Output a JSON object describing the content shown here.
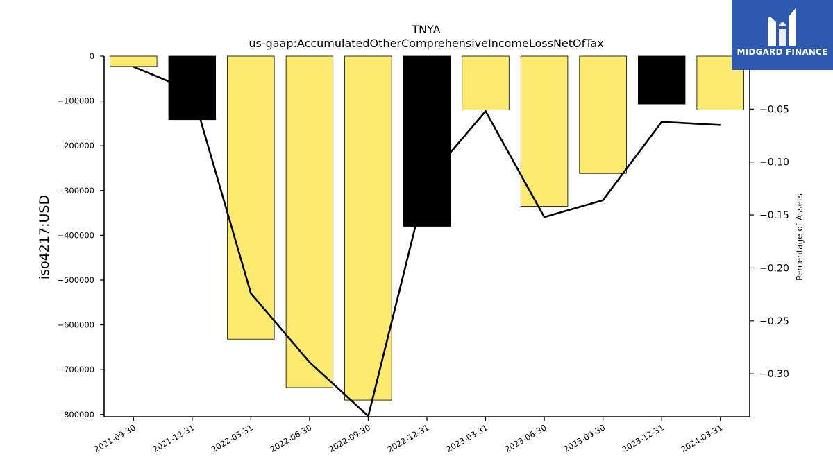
{
  "chart_data": {
    "type": "bar",
    "title": "TNYA",
    "subtitle": "us-gaap:AccumulatedOtherComprehensiveIncomeLossNetOfTax",
    "ylabel": "iso4217:USD",
    "ylabel_right": "Percentage of Assets",
    "categories": [
      "2021-09-30",
      "2021-12-31",
      "2022-03-31",
      "2022-06-30",
      "2022-09-30",
      "2022-12-31",
      "2023-03-31",
      "2023-06-30",
      "2023-09-30",
      "2023-12-31",
      "2024-03-31"
    ],
    "values": [
      -23000,
      -142000,
      -632000,
      -740000,
      -768000,
      -380000,
      -120000,
      -335000,
      -262000,
      -107000,
      -120000
    ],
    "bar_colors": [
      "#fdeb6f",
      "#000000",
      "#fdeb6f",
      "#fdeb6f",
      "#fdeb6f",
      "#000000",
      "#fdeb6f",
      "#fdeb6f",
      "#fdeb6f",
      "#000000",
      "#fdeb6f"
    ],
    "line_series": {
      "name": "Percentage of Assets",
      "values": [
        -0.01,
        -0.033,
        -0.224,
        -0.289,
        -0.34,
        -0.117,
        -0.052,
        -0.152,
        -0.136,
        -0.062,
        -0.065
      ]
    },
    "ylim": [
      -805000,
      0
    ],
    "yticks": [
      0,
      -100000,
      -200000,
      -300000,
      -400000,
      -500000,
      -600000,
      -700000,
      -800000
    ],
    "ylim_right": [
      -0.3405,
      0.0
    ],
    "yticks_right": [
      -0.05,
      -0.1,
      -0.15,
      -0.2,
      -0.25,
      -0.3
    ],
    "grid": false,
    "legend": "none"
  },
  "logo": {
    "text": "MIDGARD FINANCE",
    "color": "#2d5aae"
  }
}
